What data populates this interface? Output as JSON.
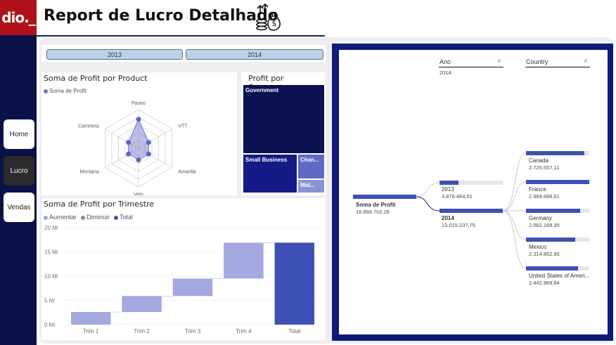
{
  "header": {
    "logo_text": "dio._",
    "title": "Report de Lucro Detalhado",
    "icon": "money-bags-icon"
  },
  "nav": [
    {
      "label": "Home"
    },
    {
      "label": "Lucro"
    },
    {
      "label": "Vendas"
    }
  ],
  "slicer": {
    "years": [
      "2013",
      "2014"
    ]
  },
  "radar": {
    "title": "Soma de Profit por Product",
    "legend": "Soma de Profit",
    "axes": [
      "Paseo",
      "VTT",
      "Amarilla",
      "Velo",
      "Montana",
      "Carretera"
    ]
  },
  "treemap": {
    "title": "Profit por Segmento",
    "segments": [
      "Government",
      "Small Business",
      "Chan...",
      "Mid..."
    ]
  },
  "waterfall": {
    "title": "Soma de Profit por Trimestre",
    "legend": [
      "Aumentar",
      "Diminuir",
      "Total"
    ]
  },
  "chart_data": [
    {
      "type": "radar",
      "title": "Soma de Profit por Product",
      "categories": [
        "Paseo",
        "VTT",
        "Amarilla",
        "Velo",
        "Montana",
        "Carretera"
      ],
      "series": [
        {
          "name": "Soma de Profit",
          "values": [
            0.75,
            0.3,
            0.3,
            0.3,
            0.3,
            0.3
          ]
        }
      ]
    },
    {
      "type": "bar",
      "title": "Soma de Profit por Trimestre",
      "categories": [
        "Trim 1",
        "Trim 2",
        "Trim 3",
        "Trim 4",
        "Total"
      ],
      "ranges": [
        [
          0,
          2.6
        ],
        [
          2.6,
          5.9
        ],
        [
          5.9,
          9.5
        ],
        [
          9.5,
          16.9
        ],
        [
          0,
          16.9
        ]
      ],
      "yticks": [
        "0 Mi",
        "5 Mi",
        "10 Mi",
        "15 Mi",
        "20 Mi"
      ],
      "ylim": [
        0,
        20
      ]
    }
  ],
  "decomposition": {
    "filters": [
      {
        "label": "Ano",
        "value": "2014"
      },
      {
        "label": "Country",
        "value": ""
      }
    ],
    "root": {
      "label": "Soma de Profit",
      "value": "16.893.702,26",
      "fill": 1.0
    },
    "years": [
      {
        "label": "2013",
        "value": "3.878.464,51",
        "fill": 0.3
      },
      {
        "label": "2014",
        "value": "13.015.237,75",
        "fill": 1.0
      }
    ],
    "countries": [
      {
        "label": "Canada",
        "value": "2.725.557,11",
        "fill": 0.92
      },
      {
        "label": "France",
        "value": "2.969.688,61",
        "fill": 1.0
      },
      {
        "label": "Germany",
        "value": "2.562.169,35",
        "fill": 0.86
      },
      {
        "label": "Mexico",
        "value": "2.314.852,85",
        "fill": 0.78
      },
      {
        "label": "United States of Ameri...",
        "value": "2.442.969,84",
        "fill": 0.82
      }
    ]
  }
}
